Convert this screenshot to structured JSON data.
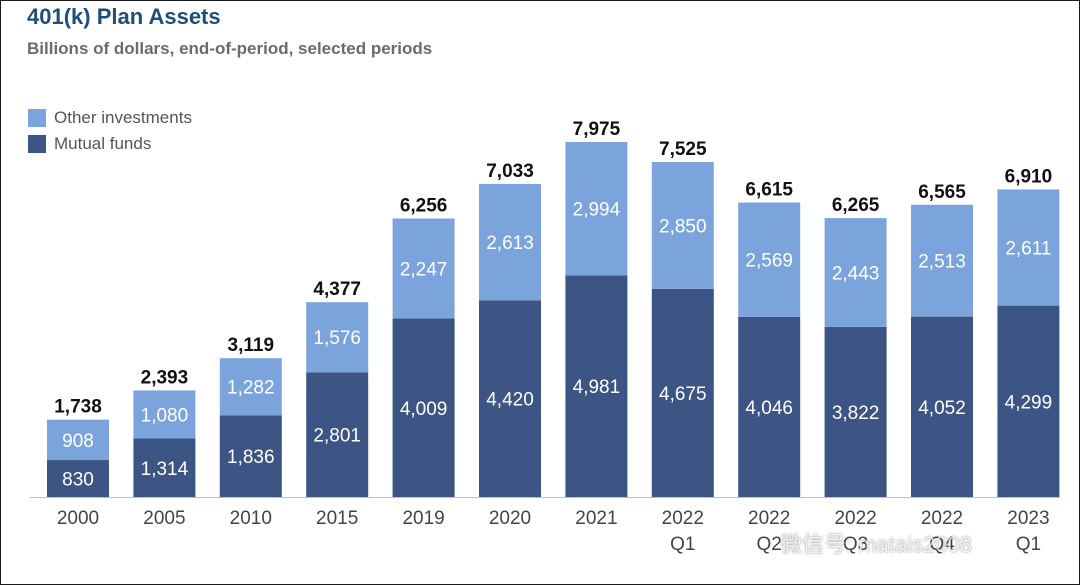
{
  "title": "401(k) Plan Assets",
  "subtitle": "Billions of dollars, end-of-period, selected periods",
  "colors": {
    "mutual_funds": "#3c5584",
    "other_investments": "#7ca4dc",
    "title": "#1f4e79"
  },
  "watermark": "微信号: matais2008",
  "chart_data": {
    "type": "bar",
    "stacked": true,
    "categories": [
      [
        "2000"
      ],
      [
        "2005"
      ],
      [
        "2010"
      ],
      [
        "2015"
      ],
      [
        "2019"
      ],
      [
        "2020"
      ],
      [
        "2021"
      ],
      [
        "2022",
        "Q1"
      ],
      [
        "2022",
        "Q2"
      ],
      [
        "2022",
        "Q3"
      ],
      [
        "2022",
        "Q4"
      ],
      [
        "2023",
        "Q1"
      ]
    ],
    "series": [
      {
        "name": "Mutual funds",
        "values": [
          830,
          1314,
          1836,
          2801,
          4009,
          4420,
          4981,
          4675,
          4046,
          3822,
          4052,
          4299
        ]
      },
      {
        "name": "Other investments",
        "values": [
          908,
          1080,
          1282,
          1576,
          2247,
          2613,
          2994,
          2850,
          2569,
          2443,
          2513,
          2611
        ]
      }
    ],
    "totals": [
      1738,
      2393,
      3119,
      4377,
      6256,
      7033,
      7975,
      7525,
      6615,
      6265,
      6565,
      6910
    ],
    "legend": [
      "Other investments",
      "Mutual funds"
    ],
    "legend_position": "top-left",
    "ylim": [
      0,
      8000
    ],
    "grid": false
  }
}
